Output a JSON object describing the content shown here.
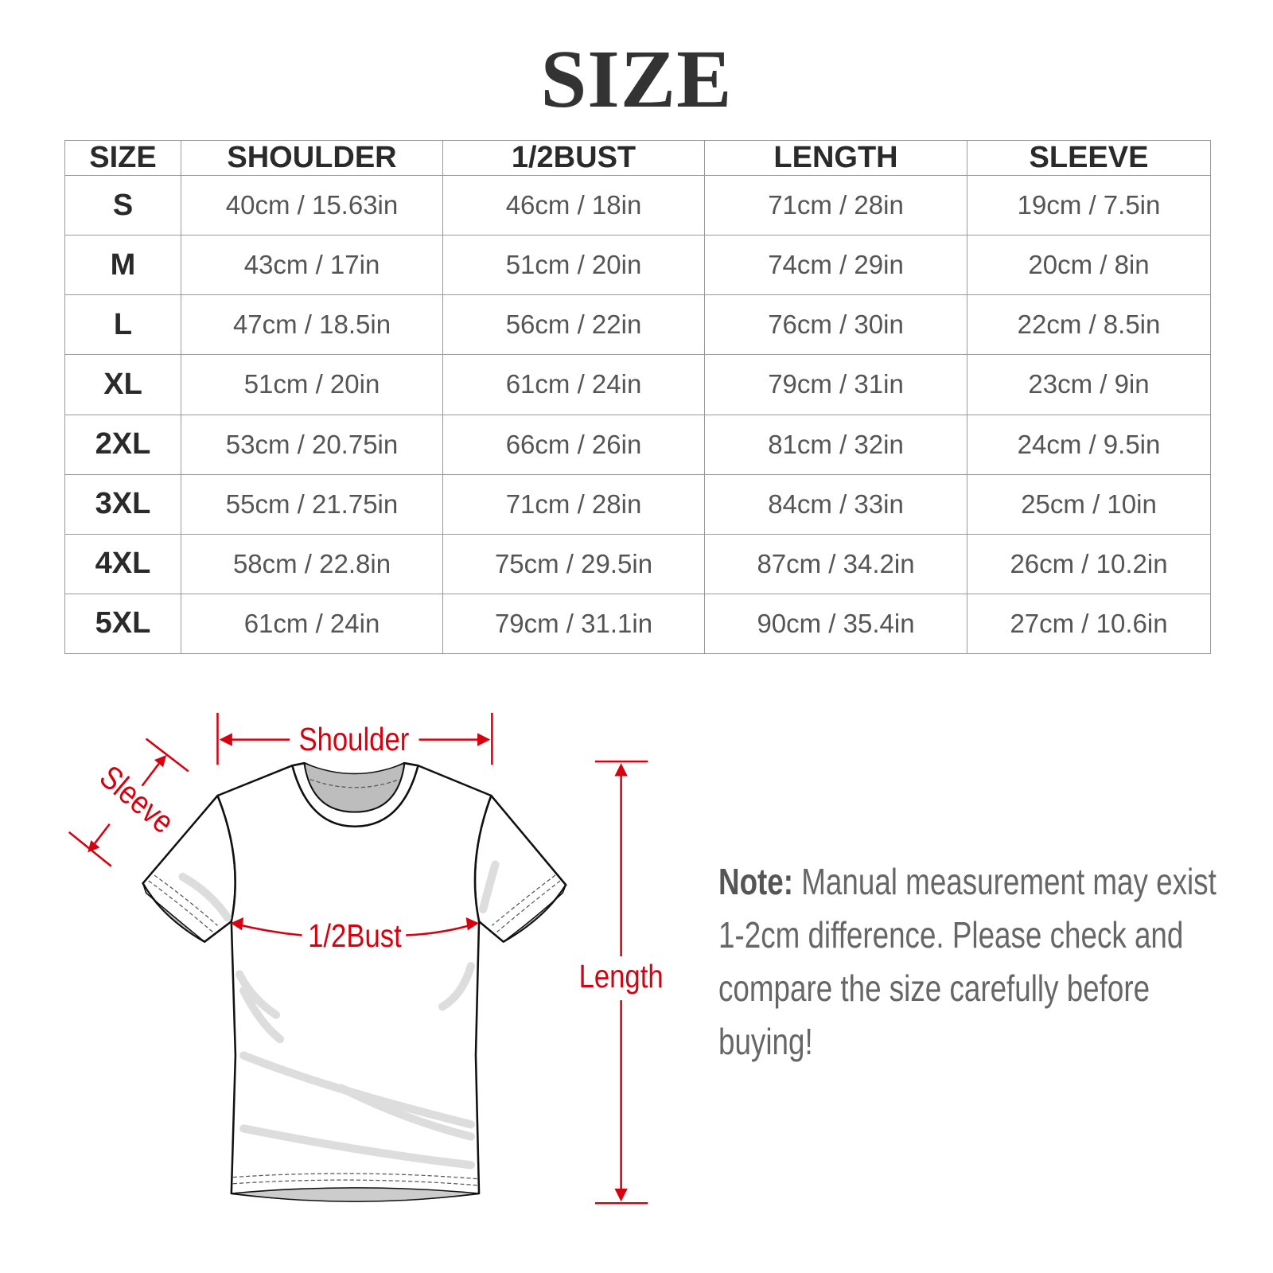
{
  "title": "SIZE",
  "table": {
    "headers": [
      "SIZE",
      "SHOULDER",
      "1/2BUST",
      "LENGTH",
      "SLEEVE"
    ],
    "rows": [
      [
        "S",
        "40cm / 15.63in",
        "46cm / 18in",
        "71cm / 28in",
        "19cm / 7.5in"
      ],
      [
        "M",
        "43cm / 17in",
        "51cm / 20in",
        "74cm / 29in",
        "20cm / 8in"
      ],
      [
        "L",
        "47cm / 18.5in",
        "56cm / 22in",
        "76cm / 30in",
        "22cm / 8.5in"
      ],
      [
        "XL",
        "51cm / 20in",
        "61cm / 24in",
        "79cm / 31in",
        "23cm / 9in"
      ],
      [
        "2XL",
        "53cm / 20.75in",
        "66cm / 26in",
        "81cm / 32in",
        "24cm / 9.5in"
      ],
      [
        "3XL",
        "55cm / 21.75in",
        "71cm / 28in",
        "84cm / 33in",
        "25cm / 10in"
      ],
      [
        "4XL",
        "58cm / 22.8in",
        "75cm / 29.5in",
        "87cm / 34.2in",
        "26cm / 10.2in"
      ],
      [
        "5XL",
        "61cm / 24in",
        "79cm / 31.1in",
        "90cm / 35.4in",
        "27cm / 10.6in"
      ]
    ]
  },
  "diagram": {
    "labels": {
      "shoulder": "Shoulder",
      "sleeve": "Sleeve",
      "bust": "1/2Bust",
      "length": "Length"
    },
    "accent_color": "#d7000f"
  },
  "note": {
    "label": "Note:",
    "text": "Manual measurement may exist 1-2cm difference. Please check and compare the size carefully before buying!"
  }
}
